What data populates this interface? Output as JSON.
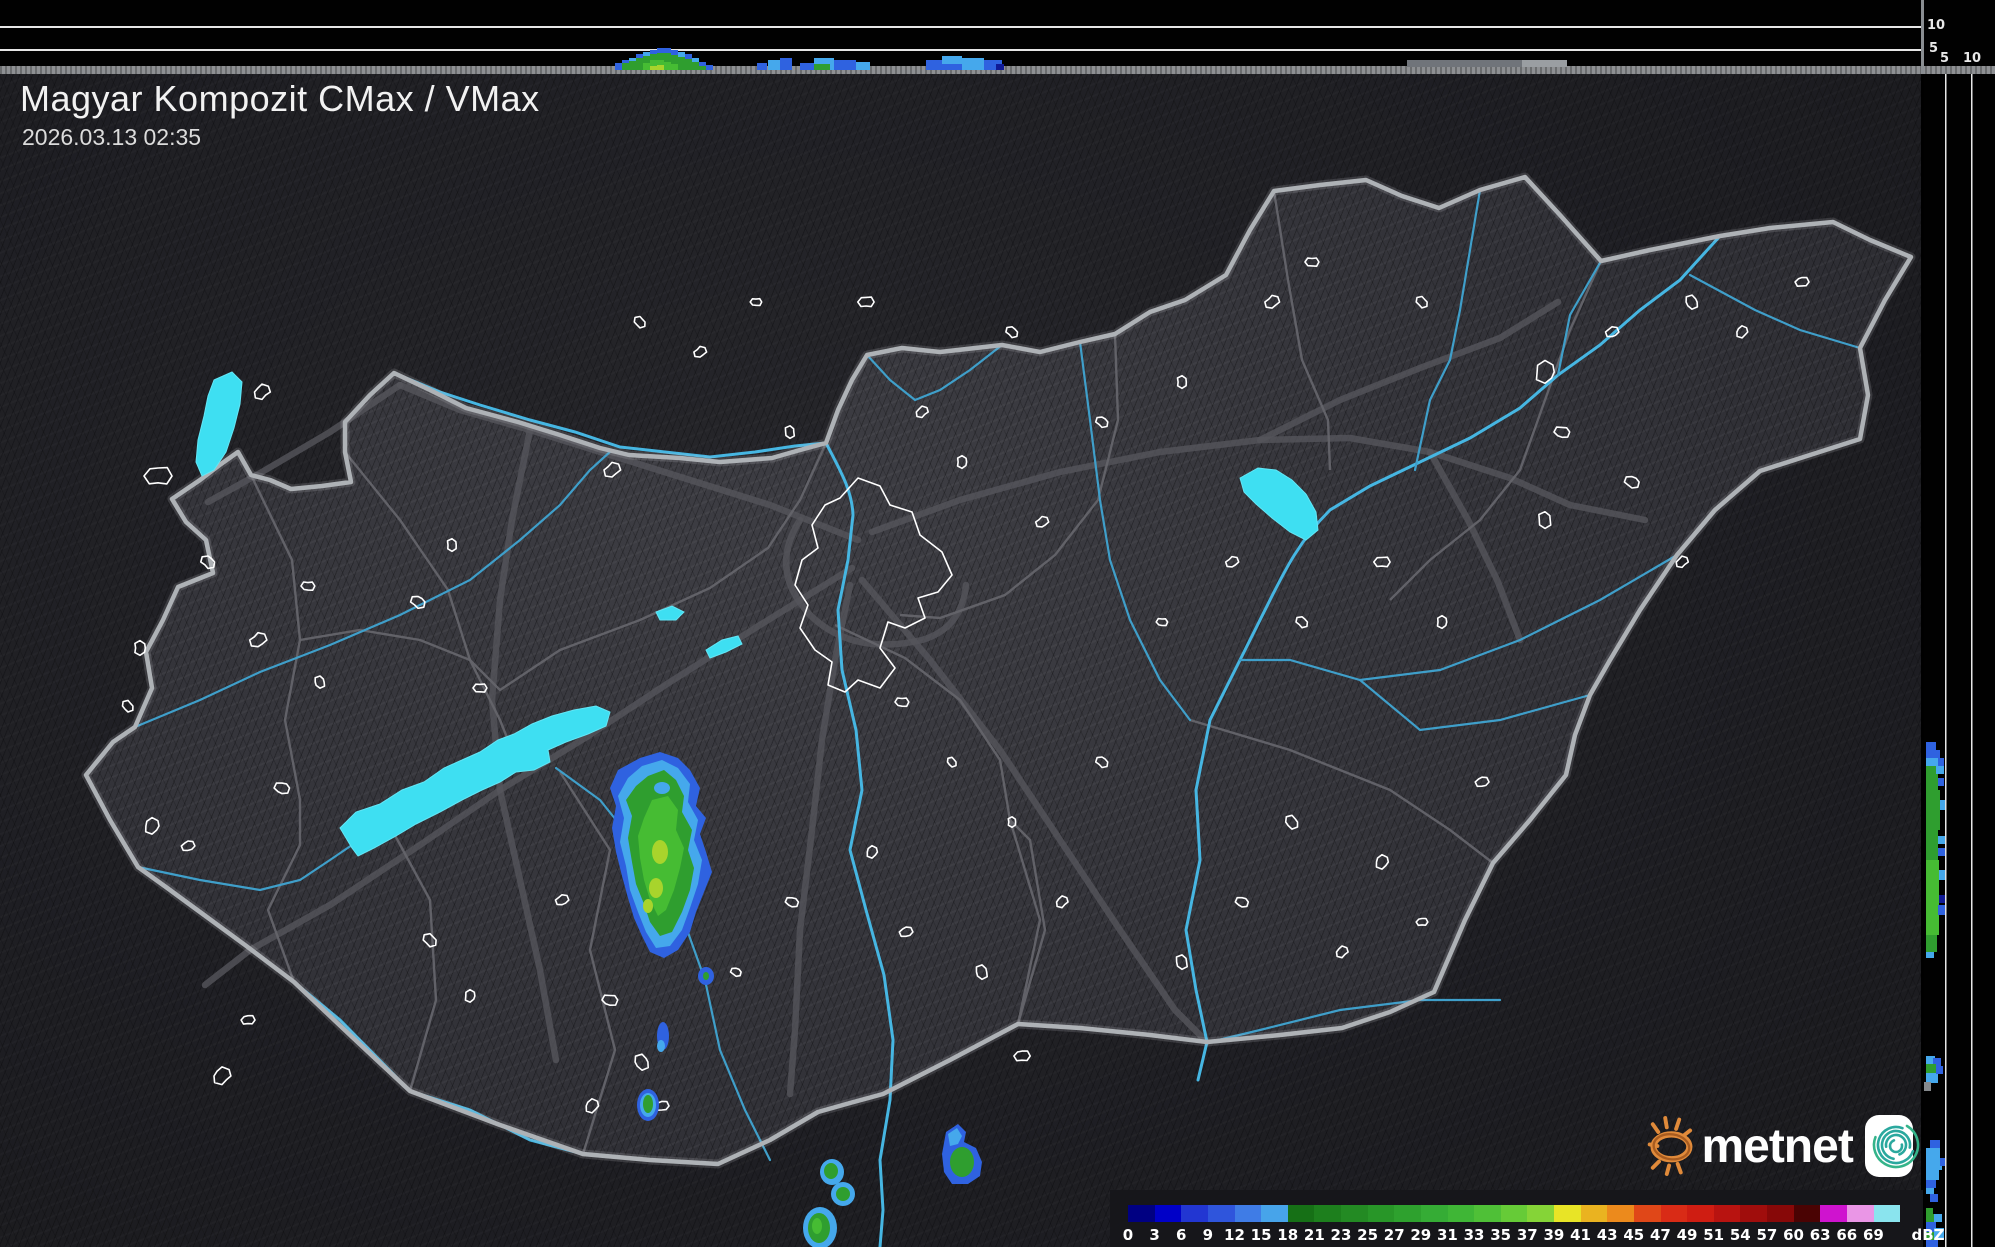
{
  "header": {
    "title": "Magyar Kompozit CMax / VMax",
    "timestamp": "2026.03.13 02:35"
  },
  "axes": {
    "top_strip_height_labels": [
      "10",
      "5"
    ],
    "right_strip_height_labels": [
      "5",
      "10"
    ]
  },
  "legend": {
    "unit": "dBZ",
    "stops": [
      {
        "label": "0",
        "color": "#000082"
      },
      {
        "label": "3",
        "color": "#0000c8"
      },
      {
        "label": "6",
        "color": "#2236d2"
      },
      {
        "label": "9",
        "color": "#2f55dc"
      },
      {
        "label": "12",
        "color": "#3f7ce6"
      },
      {
        "label": "15",
        "color": "#47a4ea"
      },
      {
        "label": "18",
        "color": "#167016"
      },
      {
        "label": "21",
        "color": "#1d7f1d"
      },
      {
        "label": "23",
        "color": "#238a23"
      },
      {
        "label": "25",
        "color": "#289628"
      },
      {
        "label": "27",
        "color": "#2ea12e"
      },
      {
        "label": "29",
        "color": "#35ac35"
      },
      {
        "label": "31",
        "color": "#3fb636"
      },
      {
        "label": "33",
        "color": "#4fc037"
      },
      {
        "label": "35",
        "color": "#66cb37"
      },
      {
        "label": "37",
        "color": "#85d437"
      },
      {
        "label": "39",
        "color": "#e8e426"
      },
      {
        "label": "41",
        "color": "#eab320"
      },
      {
        "label": "43",
        "color": "#ec8a1c"
      },
      {
        "label": "45",
        "color": "#e04718"
      },
      {
        "label": "47",
        "color": "#d92b16"
      },
      {
        "label": "49",
        "color": "#cf1d12"
      },
      {
        "label": "51",
        "color": "#b81310"
      },
      {
        "label": "54",
        "color": "#a00d0c"
      },
      {
        "label": "57",
        "color": "#870808"
      },
      {
        "label": "60",
        "color": "#4a0303"
      },
      {
        "label": "63",
        "color": "#cf13cf"
      },
      {
        "label": "66",
        "color": "#ea96e6"
      },
      {
        "label": "69",
        "color": "#8ae4ee"
      }
    ]
  },
  "branding": {
    "wordmark": "metnet"
  },
  "colors": {
    "lake": "#3edff2",
    "river": "#3f9fca",
    "river_bright": "#46b6e2",
    "road": "#55555b",
    "county": "#64646a",
    "border": "#aeb2b6",
    "town": "#ffffff",
    "echo_navy": "#101a96",
    "echo_blue": "#2f62e0",
    "echo_cyan": "#45a8ec",
    "echo_green": "#2f9e2f",
    "echo_green_bright": "#46bc33",
    "echo_yellow": "#a8d42c"
  }
}
